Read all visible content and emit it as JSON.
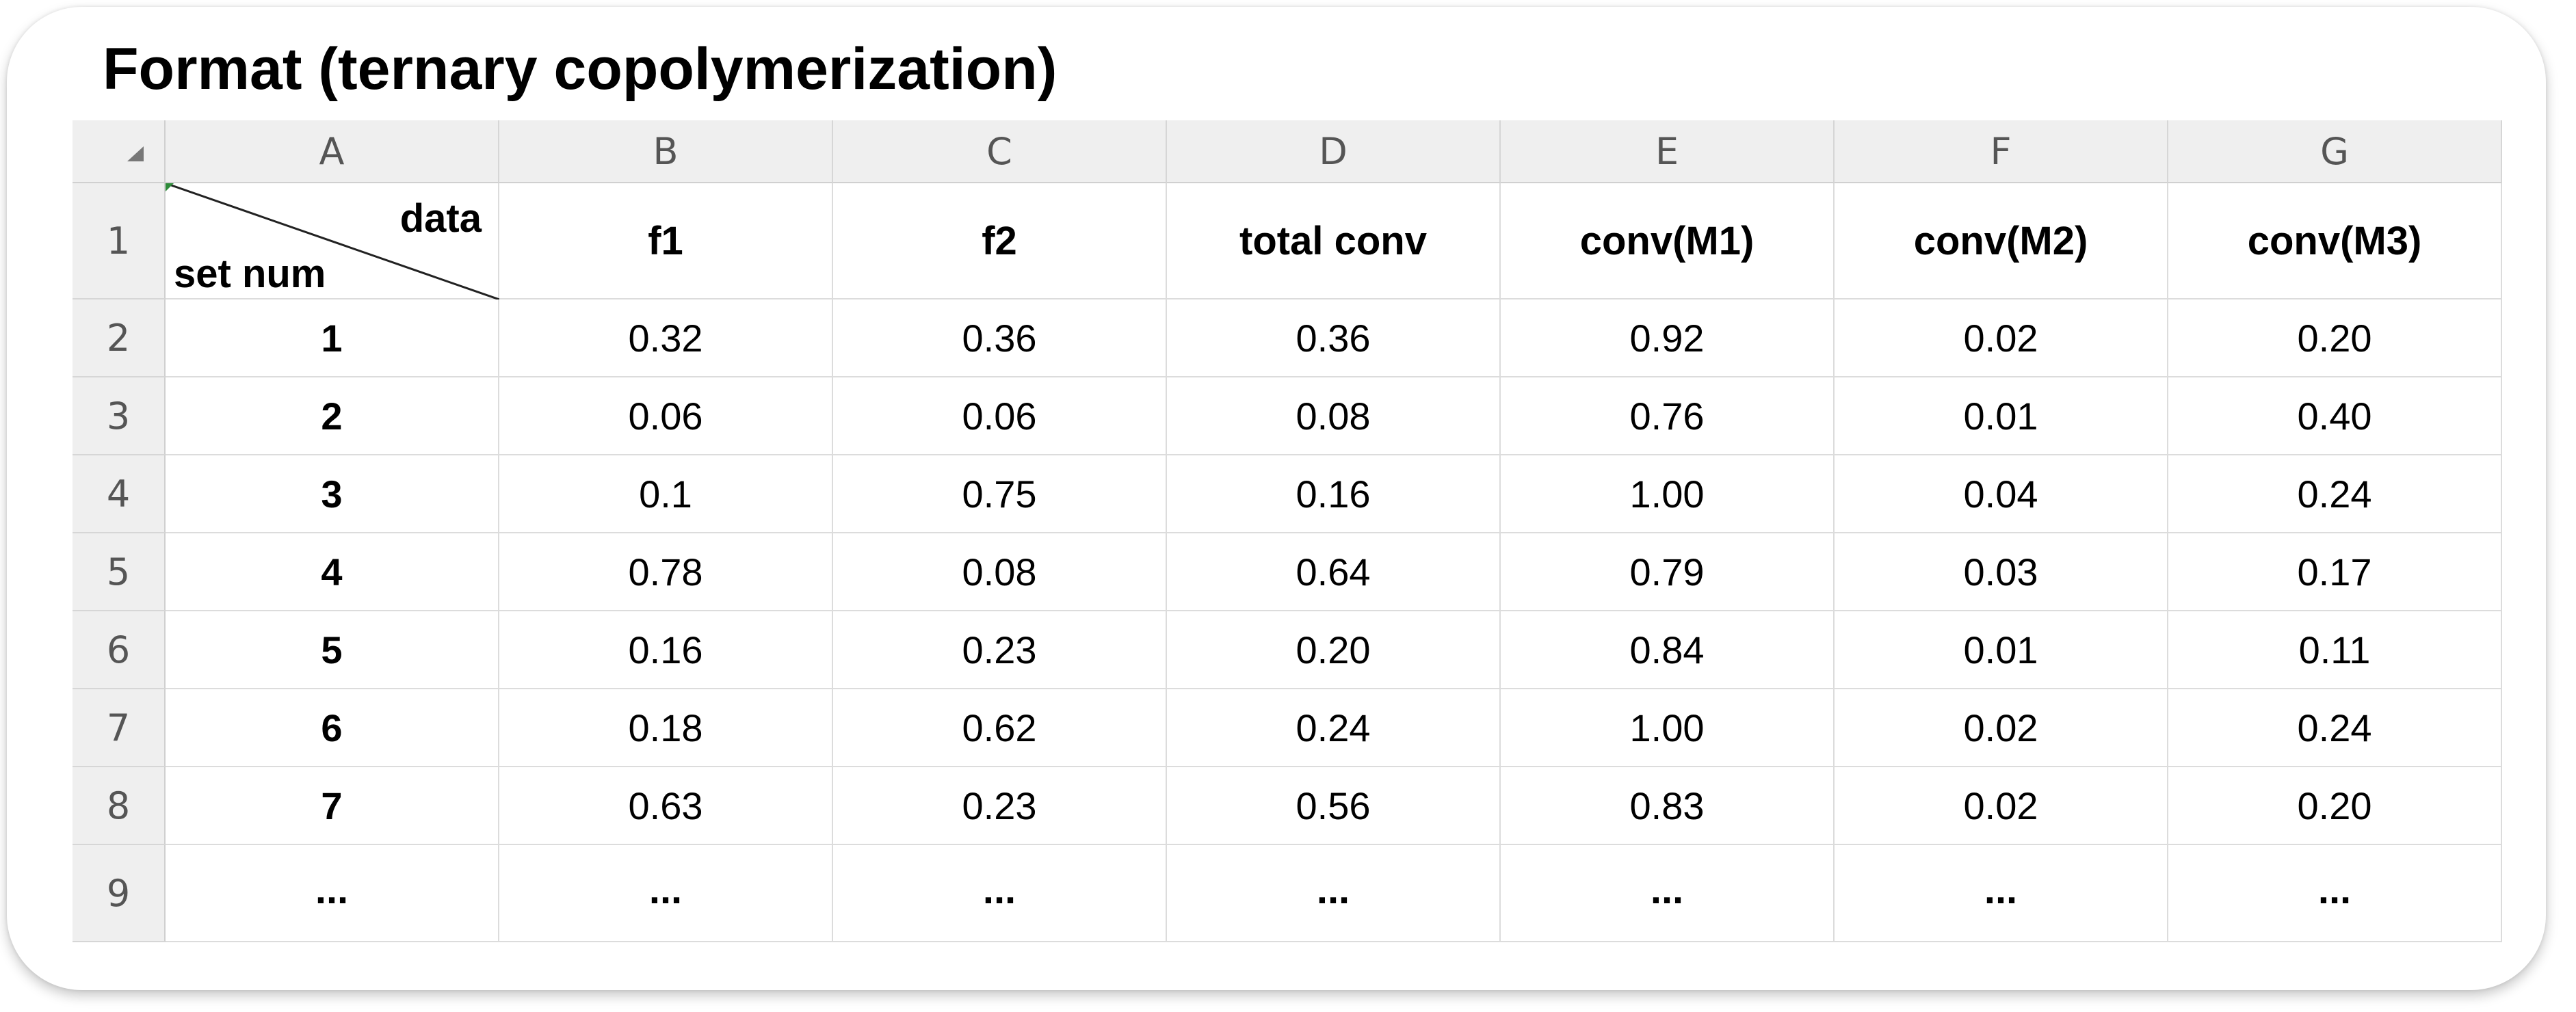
{
  "title": "Format (ternary copolymerization)",
  "column_headers": [
    "A",
    "B",
    "C",
    "D",
    "E",
    "F",
    "G"
  ],
  "row_headers": [
    "1",
    "2",
    "3",
    "4",
    "5",
    "6",
    "7",
    "8",
    "9"
  ],
  "header_row": {
    "a1_top": "data",
    "a1_bottom": "set num",
    "cols": [
      "f1",
      "f2",
      "total conv",
      "conv(M1)",
      "conv(M2)",
      "conv(M3)"
    ]
  },
  "rows": [
    [
      "1",
      "0.32",
      "0.36",
      "0.36",
      "0.92",
      "0.02",
      "0.20"
    ],
    [
      "2",
      "0.06",
      "0.06",
      "0.08",
      "0.76",
      "0.01",
      "0.40"
    ],
    [
      "3",
      "0.1",
      "0.75",
      "0.16",
      "1.00",
      "0.04",
      "0.24"
    ],
    [
      "4",
      "0.78",
      "0.08",
      "0.64",
      "0.79",
      "0.03",
      "0.17"
    ],
    [
      "5",
      "0.16",
      "0.23",
      "0.20",
      "0.84",
      "0.01",
      "0.11"
    ],
    [
      "6",
      "0.18",
      "0.62",
      "0.24",
      "1.00",
      "0.02",
      "0.24"
    ],
    [
      "7",
      "0.63",
      "0.23",
      "0.56",
      "0.83",
      "0.02",
      "0.20"
    ],
    [
      "...",
      "...",
      "...",
      "...",
      "...",
      "...",
      "..."
    ]
  ],
  "colors": {
    "header_bg": "#efefef",
    "grid_line": "#dcdcdc",
    "selection_marker": "#2e8b3a"
  }
}
